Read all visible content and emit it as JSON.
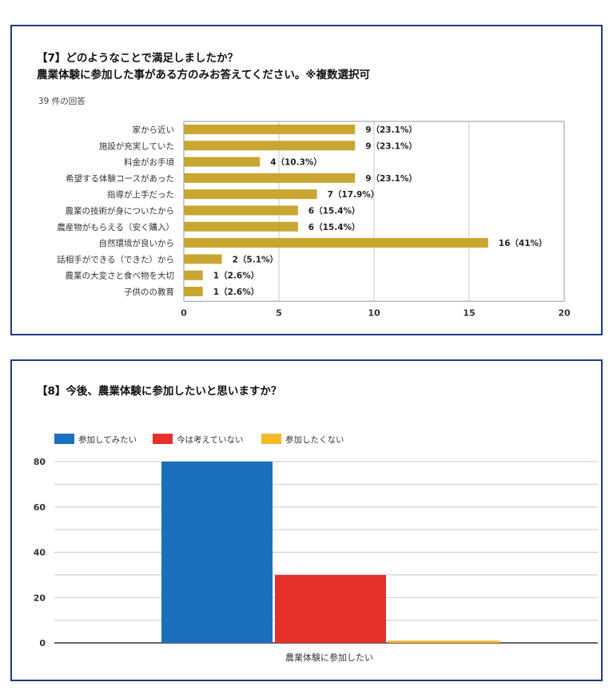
{
  "q7": {
    "title_line1": "【7】どのようなことで満足しましたか？",
    "title_line2": "農業体験に参加した事がある方のみお答えてください。※複数選択可",
    "responses": "39 件の回答"
  },
  "q8": {
    "title": "【8】今後、農業体験に参加したいと思いますか？"
  },
  "colors": {
    "bar": "#c9a632",
    "want": "#1c6fbf",
    "not_now": "#e5312a",
    "no": "#f5b829",
    "frame": "#1e3a8a"
  },
  "chart_data": [
    {
      "type": "bar",
      "orientation": "horizontal",
      "categories": [
        "家から近い",
        "施設が充実していた",
        "料金がお手頃",
        "希望する体験コースがあった",
        "指導が上手だった",
        "農業の技術が身についたから",
        "農産物がもらえる（安く購入）",
        "自然環境が良いから",
        "話相手ができる（できた）から",
        "農業の大変さと食べ物を大切",
        "子供のの教育"
      ],
      "values": [
        9,
        9,
        4,
        9,
        7,
        6,
        6,
        16,
        2,
        1,
        1
      ],
      "value_labels": [
        "9（23.1%）",
        "9（23.1%）",
        "4（10.3%）",
        "9（23.1%）",
        "7（17.9%）",
        "6（15.4%）",
        "6（15.4%）",
        "16（41%）",
        "2（5.1%）",
        "1（2.6%）",
        "1（2.6%）"
      ],
      "xlim": [
        0,
        20
      ],
      "xticks": [
        "0",
        "5",
        "10",
        "15",
        "20"
      ],
      "grid": true
    },
    {
      "type": "bar",
      "categories": [
        "農業体験に参加したい"
      ],
      "series": [
        {
          "name": "参加してみたい",
          "values": [
            80
          ]
        },
        {
          "name": "今は考えていない",
          "values": [
            30
          ]
        },
        {
          "name": "参加したくない",
          "values": [
            1
          ]
        }
      ],
      "ylim": [
        0,
        80
      ],
      "yticks": [
        "0",
        "20",
        "40",
        "60",
        "80"
      ],
      "legend": "top-left",
      "grid": true
    }
  ]
}
